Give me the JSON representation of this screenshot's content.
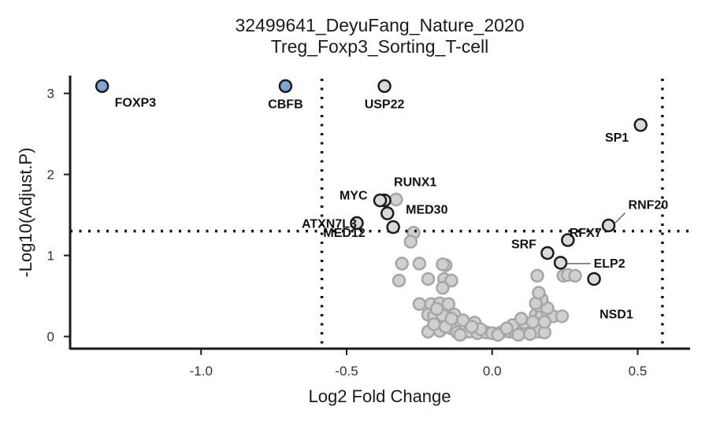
{
  "chart_data": {
    "type": "scatter",
    "title": "32499641_DeyuFang_Nature_2020",
    "subtitle": "Treg_Foxp3_Sorting_T-cell",
    "xlabel": "Log2 Fold Change",
    "ylabel": "-Log10(Adjust.P)",
    "xlim": [
      -1.45,
      0.68
    ],
    "ylim": [
      -0.15,
      3.22
    ],
    "x_ticks": [
      -1.0,
      -0.5,
      0.0,
      0.5
    ],
    "x_tick_labels": [
      "-1.0",
      "-0.5",
      "0.0",
      "0.5"
    ],
    "y_ticks": [
      0,
      1,
      2,
      3
    ],
    "y_tick_labels": [
      "0",
      "1",
      "2",
      "3"
    ],
    "thresholds": {
      "x": [
        -0.585,
        0.585
      ],
      "y": 1.301
    },
    "grid": false,
    "legend": "none",
    "colors": {
      "highlight_fill": "#7fa7d4",
      "significant_fill": "#d9d9d9",
      "background_fill": "#d0d0d0",
      "background_edge": "#a6a6a6",
      "edge": "#1a1a1a"
    },
    "highlighted": [
      {
        "gene": "FOXP3",
        "x": -1.34,
        "y": 3.09
      },
      {
        "gene": "CBFB",
        "x": -0.71,
        "y": 3.09
      }
    ],
    "significant": [
      {
        "gene": "USP22",
        "x": -0.37,
        "y": 3.09
      },
      {
        "gene": "SP1",
        "x": 0.51,
        "y": 2.61
      },
      {
        "gene": "RUNX1",
        "x": -0.37,
        "y": 1.68
      },
      {
        "gene": "MYC",
        "x": -0.385,
        "y": 1.68
      },
      {
        "gene": "RNF20",
        "x": 0.4,
        "y": 1.37
      },
      {
        "gene": "ATXN7L3",
        "x": -0.465,
        "y": 1.4
      },
      {
        "gene": "MED30",
        "x": -0.34,
        "y": 1.35
      },
      {
        "gene": "MED12",
        "x": -0.36,
        "y": 1.52
      },
      {
        "gene": "RFX7",
        "x": 0.26,
        "y": 1.19
      },
      {
        "gene": "SRF",
        "x": 0.19,
        "y": 1.03
      },
      {
        "gene": "ELP2",
        "x": 0.235,
        "y": 0.91
      },
      {
        "gene": "NSD1",
        "x": 0.35,
        "y": 0.71
      }
    ],
    "labels": [
      {
        "text": "FOXP3",
        "x": -1.34,
        "y": 3.09
      },
      {
        "text": "CBFB",
        "x": -0.71,
        "y": 3.09
      },
      {
        "text": "USP22",
        "x": -0.37,
        "y": 3.09
      },
      {
        "text": "SP1",
        "x": 0.51,
        "y": 2.61
      },
      {
        "text": "RUNX1",
        "x": -0.37,
        "y": 1.68
      },
      {
        "text": "MYC",
        "x": -0.385,
        "y": 1.68
      },
      {
        "text": "RNF20",
        "x": 0.4,
        "y": 1.37
      },
      {
        "text": "ATXN7L3",
        "x": -0.465,
        "y": 1.4
      },
      {
        "text": "MED30",
        "x": -0.34,
        "y": 1.35
      },
      {
        "text": "MED12",
        "x": -0.36,
        "y": 1.52
      },
      {
        "text": "RFX7",
        "x": 0.26,
        "y": 1.19
      },
      {
        "text": "SRF",
        "x": 0.19,
        "y": 1.03
      },
      {
        "text": "ELP2",
        "x": 0.235,
        "y": 0.91
      },
      {
        "text": "NSD1",
        "x": 0.35,
        "y": 0.71
      }
    ],
    "background_points": [
      [
        -0.33,
        1.69
      ],
      [
        -0.27,
        1.28
      ],
      [
        -0.28,
        1.17
      ],
      [
        -0.31,
        0.9
      ],
      [
        -0.25,
        0.9
      ],
      [
        -0.32,
        0.69
      ],
      [
        -0.22,
        0.71
      ],
      [
        -0.16,
        0.88
      ],
      [
        -0.17,
        0.89
      ],
      [
        -0.165,
        0.71
      ],
      [
        -0.14,
        0.69
      ],
      [
        -0.17,
        0.6
      ],
      [
        -0.25,
        0.4
      ],
      [
        -0.21,
        0.4
      ],
      [
        -0.18,
        0.41
      ],
      [
        -0.15,
        0.4
      ],
      [
        -0.22,
        0.27
      ],
      [
        -0.2,
        0.25
      ],
      [
        -0.17,
        0.26
      ],
      [
        -0.13,
        0.27
      ],
      [
        -0.1,
        0.2
      ],
      [
        -0.06,
        0.17
      ],
      [
        -0.22,
        0.06
      ],
      [
        -0.18,
        0.07
      ],
      [
        -0.14,
        0.1
      ],
      [
        -0.12,
        0.05
      ],
      [
        -0.08,
        0.06
      ],
      [
        -0.05,
        0.04
      ],
      [
        -0.02,
        0.05
      ],
      [
        0.0,
        0.04
      ],
      [
        0.03,
        0.05
      ],
      [
        0.06,
        0.06
      ],
      [
        0.08,
        0.05
      ],
      [
        0.1,
        0.07
      ],
      [
        0.12,
        0.1
      ],
      [
        0.14,
        0.08
      ],
      [
        0.16,
        0.06
      ],
      [
        0.18,
        0.05
      ],
      [
        0.07,
        0.14
      ],
      [
        0.11,
        0.17
      ],
      [
        0.15,
        0.27
      ],
      [
        0.17,
        0.26
      ],
      [
        0.19,
        0.3
      ],
      [
        0.21,
        0.25
      ],
      [
        0.16,
        0.38
      ],
      [
        0.19,
        0.35
      ],
      [
        0.17,
        0.46
      ],
      [
        0.15,
        0.41
      ],
      [
        0.16,
        0.54
      ],
      [
        0.155,
        0.75
      ],
      [
        0.245,
        0.75
      ],
      [
        0.26,
        0.76
      ],
      [
        0.285,
        0.75
      ],
      [
        0.24,
        0.25
      ],
      [
        -0.2,
        0.15
      ],
      [
        -0.16,
        0.12
      ],
      [
        -0.11,
        0.02
      ],
      [
        0.02,
        0.02
      ],
      [
        0.09,
        0.02
      ],
      [
        0.13,
        0.03
      ],
      [
        -0.04,
        0.09
      ],
      [
        0.05,
        0.1
      ],
      [
        0.14,
        0.18
      ],
      [
        -0.07,
        0.12
      ],
      [
        -0.14,
        0.22
      ],
      [
        0.1,
        0.22
      ],
      [
        0.18,
        0.18
      ],
      [
        -0.19,
        0.34
      ]
    ]
  }
}
